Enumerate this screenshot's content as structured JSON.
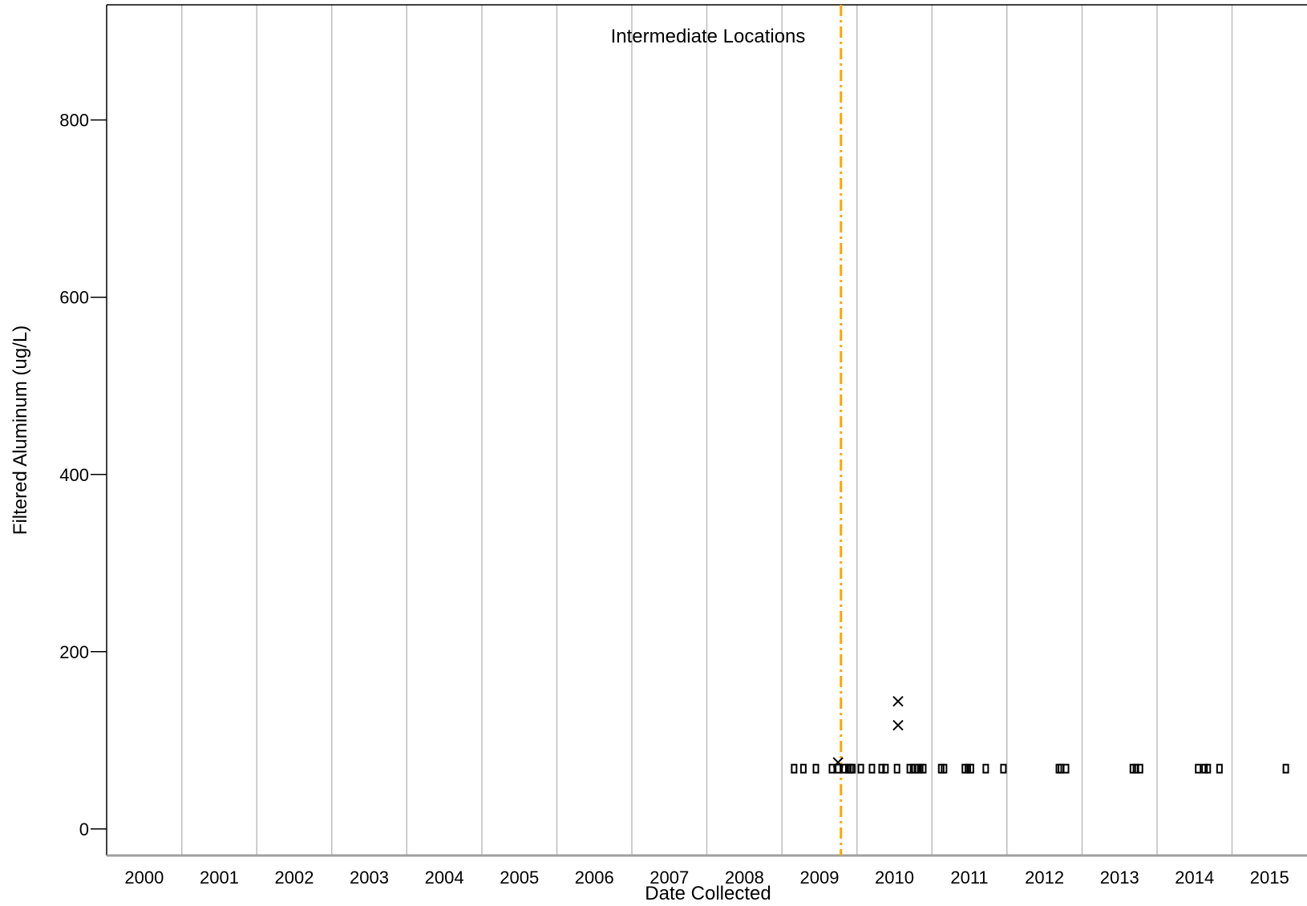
{
  "chart_data": {
    "type": "scatter",
    "title": "Intermediate Locations",
    "xlabel": "Date Collected",
    "ylabel": "Filtered Aluminum (ug/L)",
    "x_scale": "time",
    "xlim": [
      "2000-01-01",
      "2016-01-01"
    ],
    "ylim": [
      -30,
      930
    ],
    "x_ticks": [
      "2000",
      "2001",
      "2002",
      "2003",
      "2004",
      "2005",
      "2006",
      "2007",
      "2008",
      "2009",
      "2010",
      "2011",
      "2012",
      "2013",
      "2014",
      "2015"
    ],
    "y_ticks": [
      0,
      200,
      400,
      600,
      800
    ],
    "grid": "vertical lines at year boundaries",
    "reference_line": {
      "date": "2009-10-15",
      "color": "#FFA500",
      "style": "dash-dot"
    },
    "series": [
      {
        "marker": "open-rectangle",
        "points": [
          {
            "date": "2009-03-01",
            "value": 68
          },
          {
            "date": "2009-04-15",
            "value": 68
          },
          {
            "date": "2009-06-15",
            "value": 68
          },
          {
            "date": "2009-09-01",
            "value": 68
          },
          {
            "date": "2009-10-01",
            "value": 68
          },
          {
            "date": "2009-11-01",
            "value": 68
          },
          {
            "date": "2009-11-20",
            "value": 68
          },
          {
            "date": "2009-12-01",
            "value": 68
          },
          {
            "date": "2009-12-10",
            "value": 68
          },
          {
            "date": "2010-01-20",
            "value": 68
          },
          {
            "date": "2010-03-15",
            "value": 68
          },
          {
            "date": "2010-05-01",
            "value": 68
          },
          {
            "date": "2010-05-20",
            "value": 68
          },
          {
            "date": "2010-07-15",
            "value": 68
          },
          {
            "date": "2010-09-15",
            "value": 68
          },
          {
            "date": "2010-10-01",
            "value": 68
          },
          {
            "date": "2010-10-20",
            "value": 68
          },
          {
            "date": "2010-11-05",
            "value": 68
          },
          {
            "date": "2010-11-20",
            "value": 68
          },
          {
            "date": "2011-02-15",
            "value": 68
          },
          {
            "date": "2011-03-01",
            "value": 68
          },
          {
            "date": "2011-06-10",
            "value": 68
          },
          {
            "date": "2011-06-25",
            "value": 68
          },
          {
            "date": "2011-07-10",
            "value": 68
          },
          {
            "date": "2011-09-20",
            "value": 68
          },
          {
            "date": "2011-12-15",
            "value": 68
          },
          {
            "date": "2012-09-10",
            "value": 68
          },
          {
            "date": "2012-09-20",
            "value": 68
          },
          {
            "date": "2012-10-15",
            "value": 68
          },
          {
            "date": "2013-09-05",
            "value": 68
          },
          {
            "date": "2013-09-20",
            "value": 68
          },
          {
            "date": "2013-10-10",
            "value": 68
          },
          {
            "date": "2014-07-20",
            "value": 68
          },
          {
            "date": "2014-08-20",
            "value": 68
          },
          {
            "date": "2014-09-05",
            "value": 68
          },
          {
            "date": "2014-11-01",
            "value": 68
          },
          {
            "date": "2015-09-20",
            "value": 68
          }
        ]
      },
      {
        "marker": "x",
        "points": [
          {
            "date": "2009-10-01",
            "value": 75
          },
          {
            "date": "2010-07-20",
            "value": 117
          },
          {
            "date": "2010-07-20",
            "value": 144
          }
        ]
      }
    ]
  }
}
